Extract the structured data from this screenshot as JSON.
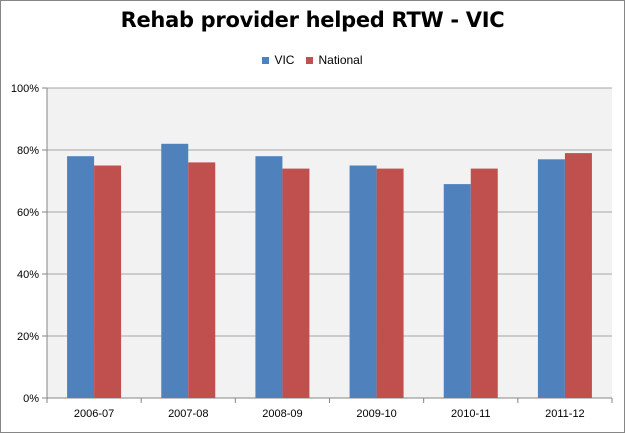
{
  "chart_data": {
    "type": "bar",
    "title": "Rehab provider helped RTW -  VIC",
    "categories": [
      "2006-07",
      "2007-08",
      "2008-09",
      "2009-10",
      "2010-11",
      "2011-12"
    ],
    "series": [
      {
        "name": "VIC",
        "color": "#4f81bd",
        "values": [
          78,
          82,
          78,
          75,
          69,
          77
        ]
      },
      {
        "name": "National",
        "color": "#c0504d",
        "values": [
          75,
          76,
          74,
          74,
          74,
          79
        ]
      }
    ],
    "ylim": [
      0,
      100
    ],
    "yticks": [
      "0%",
      "20%",
      "40%",
      "60%",
      "80%",
      "100%"
    ],
    "ytick_values": [
      0,
      20,
      40,
      60,
      80,
      100
    ],
    "xlabel": "",
    "ylabel": "",
    "grid": true,
    "legend": "top-center",
    "plot_background": "#f2f2f2"
  }
}
